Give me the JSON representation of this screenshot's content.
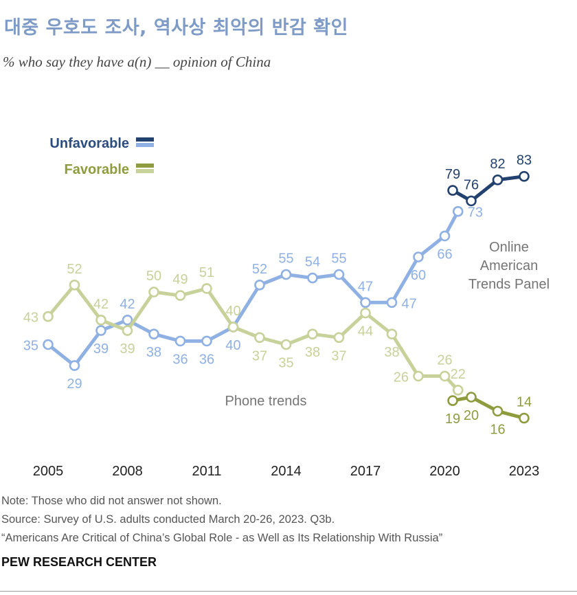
{
  "title": "대중 우호도 조사, 역사상 최악의 반감 확인",
  "subtitle": "% who say they have a(n) __ opinion of China",
  "colors": {
    "unfav_phone": "#8fb0e3",
    "unfav_online": "#23416e",
    "fav_phone": "#c7d19a",
    "fav_online": "#8e9c3e",
    "axis": "#222222",
    "annotation": "#757575"
  },
  "chart_data": {
    "type": "line",
    "x_ticks": [
      "2005",
      "2008",
      "2011",
      "2014",
      "2017",
      "2020",
      "2023"
    ],
    "legend": [
      {
        "label": "Unfavorable",
        "color": "#2b4c7e",
        "swatches": [
          "#23416e",
          "#8fb0e3"
        ]
      },
      {
        "label": "Favorable",
        "color": "#8e9c3e",
        "swatches": [
          "#8e9c3e",
          "#c7d19a"
        ]
      }
    ],
    "annotations": {
      "phone": "Phone trends",
      "online": [
        "Online",
        "American",
        "Trends Panel"
      ]
    },
    "series": [
      {
        "name": "Unfavorable (Phone trends)",
        "color": "#8fb0e3",
        "x": [
          2005,
          2006,
          2007,
          2008,
          2009,
          2010,
          2011,
          2012,
          2013,
          2014,
          2015,
          2016,
          2017,
          2018,
          2019,
          2020,
          2020.5
        ],
        "values": [
          35,
          29,
          39,
          42,
          38,
          36,
          36,
          40,
          52,
          55,
          54,
          55,
          47,
          47,
          60,
          66,
          73
        ]
      },
      {
        "name": "Unfavorable (Online American Trends Panel)",
        "color": "#23416e",
        "x": [
          2020.3,
          2021,
          2022,
          2023
        ],
        "values": [
          79,
          76,
          82,
          83
        ]
      },
      {
        "name": "Favorable (Phone trends)",
        "color": "#c7d19a",
        "x": [
          2005,
          2006,
          2007,
          2008,
          2009,
          2010,
          2011,
          2012,
          2013,
          2014,
          2015,
          2016,
          2017,
          2018,
          2019,
          2020,
          2020.5
        ],
        "values": [
          43,
          52,
          42,
          39,
          50,
          49,
          51,
          40,
          37,
          35,
          38,
          37,
          44,
          38,
          26,
          26,
          22
        ]
      },
      {
        "name": "Favorable (Online American Trends Panel)",
        "color": "#8e9c3e",
        "x": [
          2020.3,
          2021,
          2022,
          2023
        ],
        "values": [
          19,
          20,
          16,
          14
        ]
      }
    ],
    "xlim": [
      2005,
      2023
    ]
  },
  "notes": {
    "note": "Note: Those who did not answer not shown.",
    "source": "Source: Survey of U.S. adults conducted March 20-26, 2023. Q3b.",
    "report": "“Americans Are Critical of China’s Global Role - as Well as Its Relationship With Russia”"
  },
  "brand": "PEW RESEARCH CENTER"
}
